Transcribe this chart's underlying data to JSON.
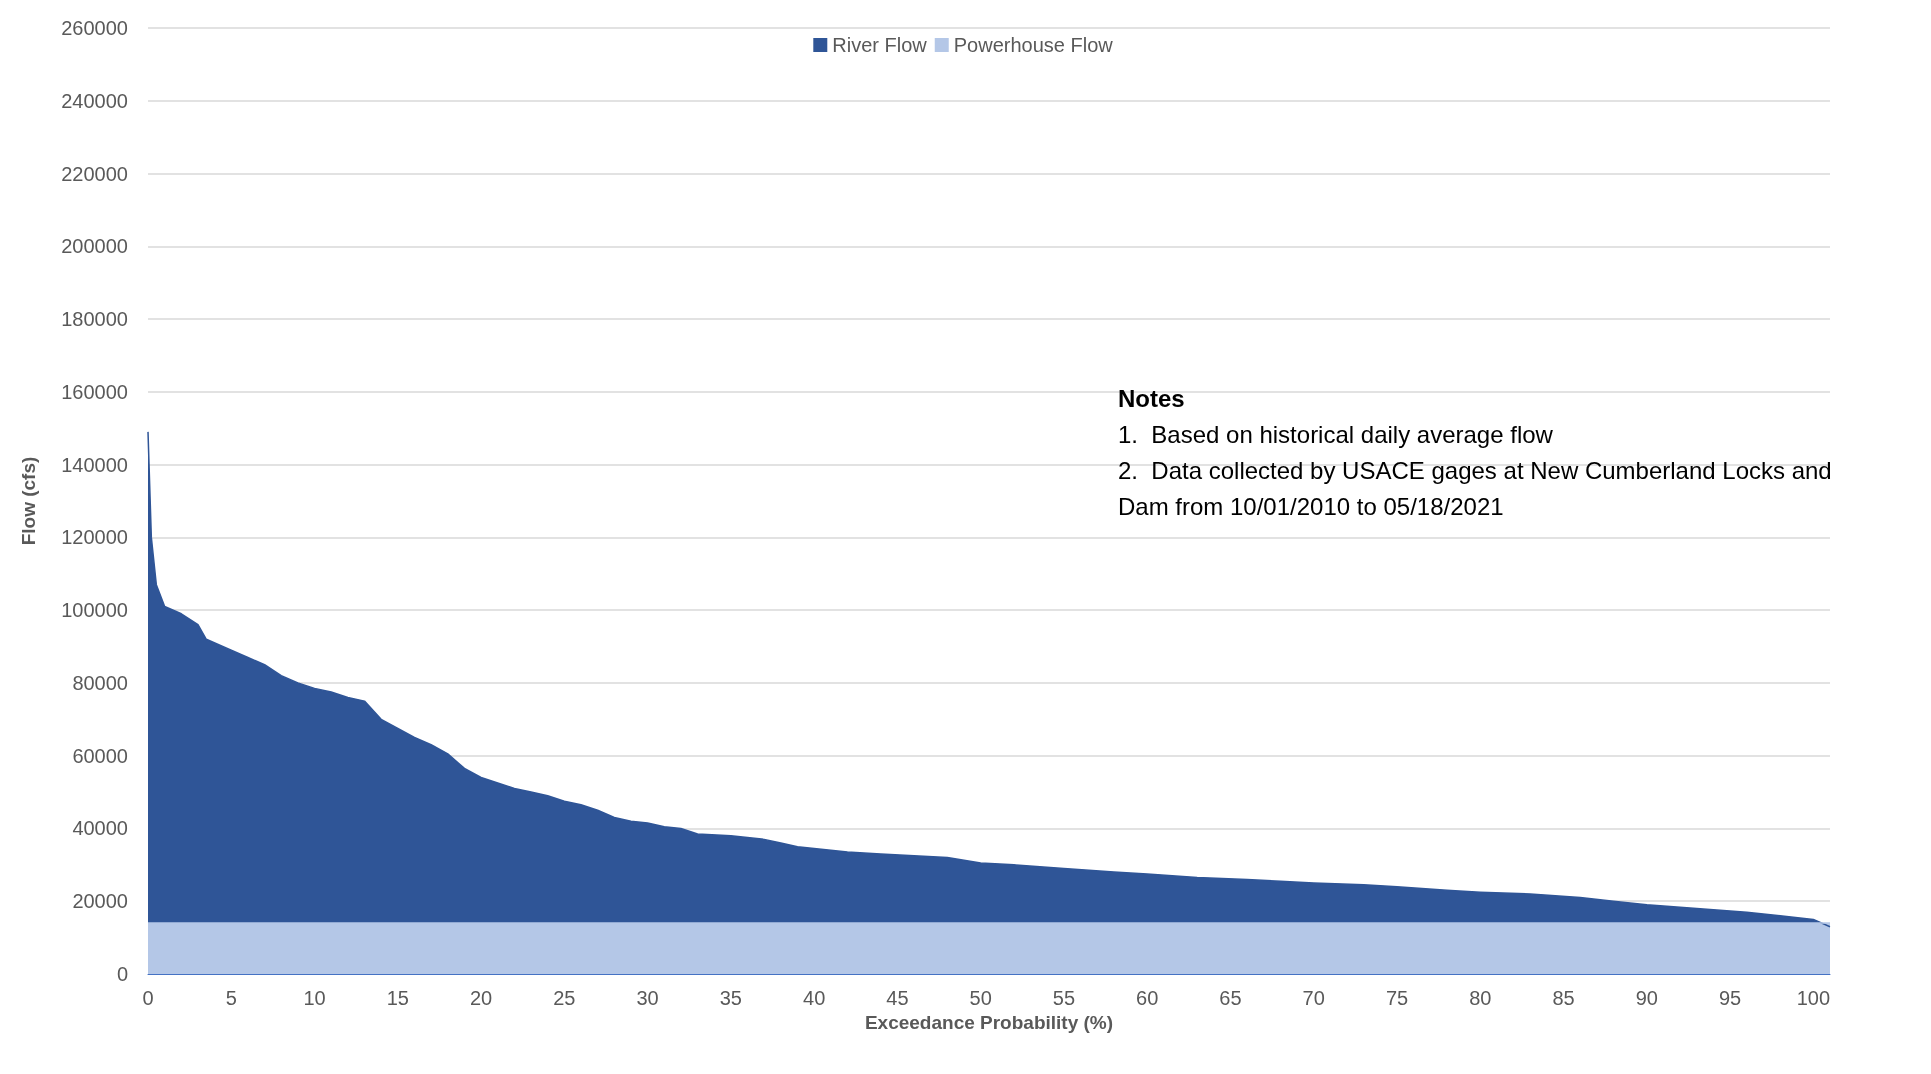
{
  "chart_data": {
    "type": "area",
    "xlabel": "Exceedance Probability (%)",
    "ylabel": "Flow (cfs)",
    "xlim": [
      0,
      101
    ],
    "xticks": [
      0,
      5,
      10,
      15,
      20,
      25,
      30,
      35,
      40,
      45,
      50,
      55,
      60,
      65,
      70,
      75,
      80,
      85,
      90,
      95,
      100
    ],
    "ylim": [
      0,
      260000
    ],
    "yticks": [
      0,
      20000,
      40000,
      60000,
      80000,
      100000,
      120000,
      140000,
      160000,
      180000,
      200000,
      220000,
      240000,
      260000
    ],
    "grid": "y",
    "legend": "top",
    "series": [
      {
        "name": "River Flow",
        "color": "#2f5597",
        "x": [
          0,
          0.2,
          0.5,
          1,
          2,
          3,
          3.5,
          5,
          6,
          7,
          8,
          9,
          10,
          11,
          12,
          13,
          14,
          15,
          16,
          17,
          18,
          19,
          20,
          21,
          22,
          23,
          24,
          25,
          26,
          27,
          28,
          29,
          30,
          31,
          32,
          33,
          35,
          37,
          38,
          39,
          40,
          42,
          44,
          46,
          48,
          50,
          52,
          55,
          58,
          60,
          63,
          66,
          68,
          70,
          73,
          75,
          78,
          80,
          83,
          86,
          88,
          90,
          93,
          96,
          98,
          100,
          101
        ],
        "values": [
          149000,
          120000,
          107000,
          101000,
          99000,
          96000,
          92000,
          89000,
          87000,
          85000,
          82000,
          80000,
          78500,
          77500,
          76000,
          75000,
          70000,
          67500,
          65000,
          63000,
          60500,
          56500,
          54000,
          52500,
          51000,
          50000,
          49000,
          47500,
          46500,
          45000,
          43000,
          42000,
          41500,
          40500,
          40000,
          38500,
          38000,
          37000,
          36000,
          35000,
          34500,
          33500,
          33000,
          32500,
          32000,
          30500,
          30000,
          29000,
          28000,
          27500,
          26500,
          26000,
          25500,
          25000,
          24500,
          24000,
          23000,
          22500,
          22000,
          21000,
          20000,
          19000,
          18000,
          17000,
          16000,
          15000,
          13000
        ]
      },
      {
        "name": "Powerhouse Flow",
        "color": "#b4c7e7",
        "x": [
          0,
          101
        ],
        "values": [
          14000,
          14000
        ]
      }
    ],
    "annotations": [
      "Notes",
      "1.  Based on historical daily average flow",
      "2.  Data collected by USACE gages at New Cumberland Locks and Dam from 10/01/2010 to 05/18/2021"
    ]
  }
}
